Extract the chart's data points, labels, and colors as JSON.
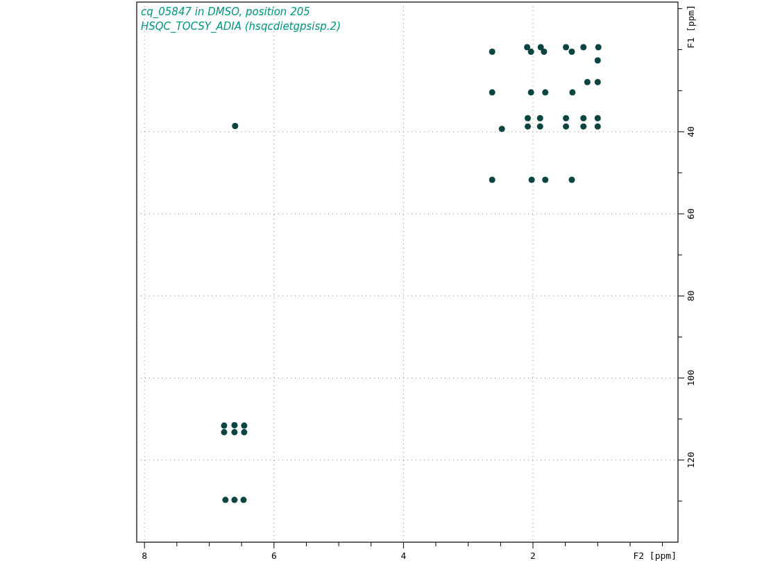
{
  "chart_data": {
    "type": "scatter",
    "title": "cq_05847 in DMSO, position 205",
    "subtitle": "HSQC_TOCSY_ADIA (hsqcdietgpsisp.2)",
    "xlabel": "F2 [ppm]",
    "ylabel": "F1 [ppm]",
    "xlim": [
      8.12,
      -0.24
    ],
    "ylim": [
      140,
      8.4
    ],
    "xticks": [
      8,
      {
        "value": 7.5,
        "label": null
      },
      {
        "value": 7,
        "label": null
      },
      {
        "value": 6.5,
        "label": null
      },
      6,
      {
        "value": 5.5,
        "label": null
      },
      {
        "value": 5,
        "label": null
      },
      {
        "value": 4.5,
        "label": null
      },
      4,
      {
        "value": 3.5,
        "label": null
      },
      {
        "value": 3,
        "label": null
      },
      {
        "value": 2.5,
        "label": null
      },
      2,
      {
        "value": 1.5,
        "label": null
      },
      {
        "value": 1,
        "label": null
      },
      {
        "value": 0.5,
        "label": null
      },
      {
        "value": 0,
        "label": null
      }
    ],
    "yticks": [
      {
        "value": 10,
        "label": null
      },
      {
        "value": 20,
        "label": null
      },
      {
        "value": 30,
        "label": null
      },
      40,
      {
        "value": 50,
        "label": null
      },
      60,
      {
        "value": 70,
        "label": null
      },
      80,
      {
        "value": 90,
        "label": null
      },
      100,
      {
        "value": 110,
        "label": null
      },
      120,
      {
        "value": 130,
        "label": null
      }
    ],
    "grid": true,
    "marker": "circle",
    "series": [
      {
        "color": "#0b4440",
        "x": [
          2.09,
          1.88,
          1.49,
          1.22,
          0.99,
          2.63,
          2.03,
          1.83,
          1.4,
          1.0,
          1.16,
          1.0,
          2.63,
          2.03,
          1.81,
          1.39,
          2.08,
          1.89,
          1.49,
          1.22,
          1.0,
          2.08,
          1.89,
          1.49,
          1.22,
          1.0,
          2.48,
          2.63,
          2.02,
          1.81,
          1.4,
          6.77,
          6.77,
          6.61,
          6.61,
          6.46,
          6.46,
          6.75,
          6.61,
          6.47,
          6.6
        ],
        "values": [
          19.4,
          19.4,
          19.4,
          19.4,
          19.4,
          20.5,
          20.5,
          20.5,
          20.5,
          22.6,
          27.9,
          27.9,
          30.4,
          30.4,
          30.4,
          30.4,
          36.7,
          36.7,
          36.7,
          36.7,
          36.7,
          38.7,
          38.7,
          38.7,
          38.7,
          38.7,
          39.3,
          51.7,
          51.7,
          51.7,
          51.7,
          111.6,
          113.2,
          111.5,
          113.2,
          111.6,
          113.2,
          129.7,
          129.7,
          129.7,
          38.6
        ]
      }
    ]
  }
}
